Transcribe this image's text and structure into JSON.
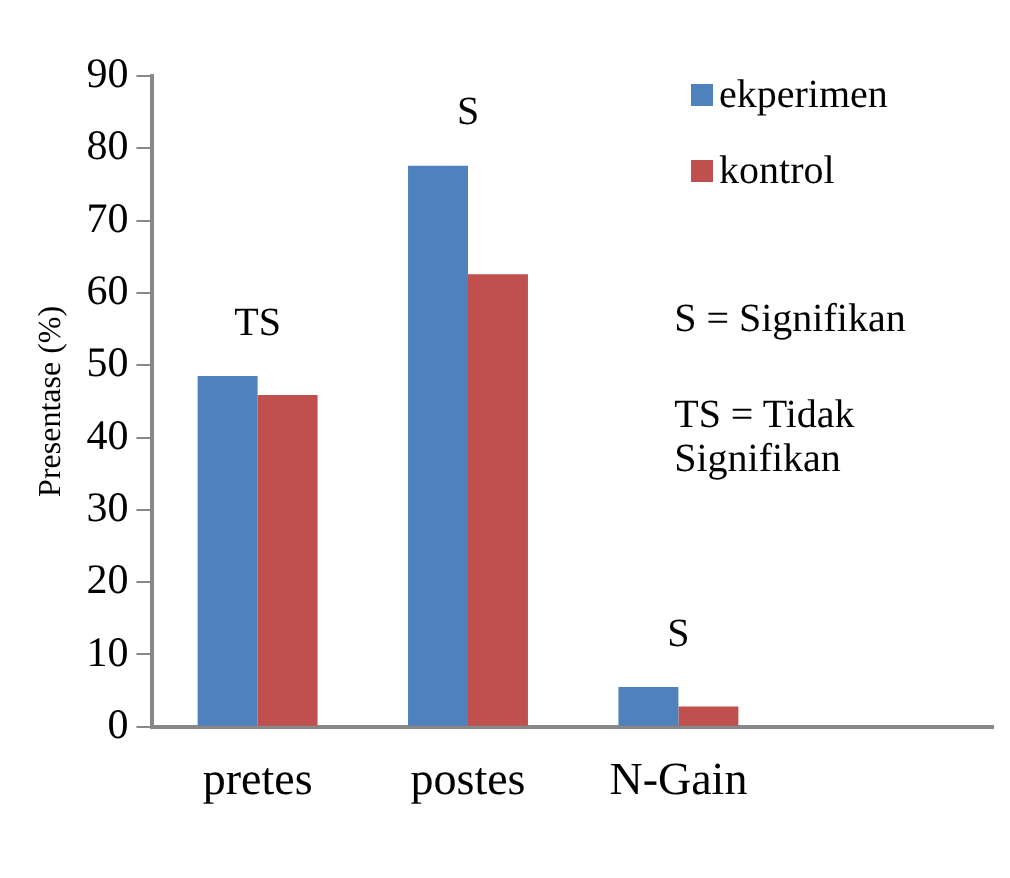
{
  "chart_data": {
    "type": "bar",
    "ylabel": "Presentase (%)",
    "categories": [
      "pretes",
      "postes",
      "N-Gain",
      null
    ],
    "series": [
      {
        "name": "ekperimen",
        "color": "#4f81bd",
        "values": [
          48.5,
          77.6,
          5.5,
          null
        ]
      },
      {
        "name": "kontrol",
        "color": "#c0504d",
        "values": [
          45.9,
          62.6,
          2.8,
          null
        ]
      }
    ],
    "ylim": [
      0,
      90
    ],
    "yticks": [
      0,
      10,
      20,
      30,
      40,
      50,
      60,
      70,
      80,
      90
    ],
    "grid": false,
    "legend": "top right",
    "annotations": [
      "TS",
      "S",
      "S",
      "S = Signifikan",
      "TS = Tidak Signifikan"
    ]
  }
}
